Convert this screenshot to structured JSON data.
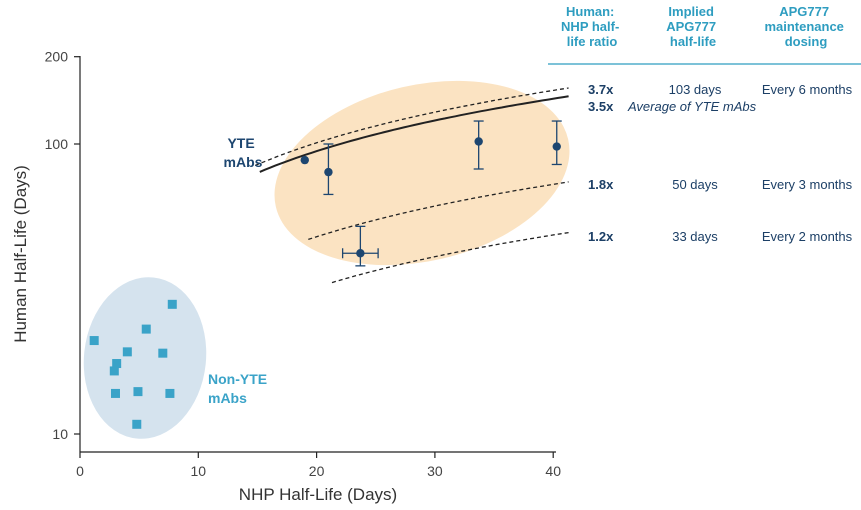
{
  "colors": {
    "axis": "#222222",
    "yte_points": "#1d4670",
    "yte_label": "#1d4670",
    "non_yte_points": "#3aa3c8",
    "non_yte_label": "#3aa3c8",
    "yte_ellipse_fill": "#fbe3c2",
    "non_yte_ellipse_fill": "#d5e3ee",
    "table_header": "#2e9dc0",
    "table_text": "#1c3f66",
    "curve": "#222222"
  },
  "chart_data": {
    "type": "scatter",
    "xlabel": "NHP Half-Life (Days)",
    "ylabel": "Human Half-Life (Days)",
    "xlim": [
      0,
      40
    ],
    "ylim": [
      9.3,
      200
    ],
    "yscale": "log",
    "x_ticks": [
      0,
      10,
      20,
      30,
      40
    ],
    "y_ticks": [
      10,
      100,
      200
    ],
    "grid": false,
    "series": [
      {
        "name": "YTE mAbs",
        "marker": "circle",
        "points": [
          {
            "x": 19,
            "y": 88
          },
          {
            "x": 21,
            "y": 80,
            "y_err": [
              67,
              100
            ]
          },
          {
            "x": 23.7,
            "y": 42,
            "y_err": [
              38,
              52
            ],
            "x_err": [
              22.2,
              25.2
            ]
          },
          {
            "x": 33.7,
            "y": 102,
            "y_err": [
              82,
              120
            ]
          },
          {
            "x": 40.3,
            "y": 98,
            "y_err": [
              85,
              120
            ]
          }
        ]
      },
      {
        "name": "Non-YTE mAbs",
        "marker": "square",
        "points": [
          {
            "x": 1.2,
            "y": 21
          },
          {
            "x": 2.9,
            "y": 16.5
          },
          {
            "x": 3.1,
            "y": 17.5
          },
          {
            "x": 3.0,
            "y": 13.8
          },
          {
            "x": 4.0,
            "y": 19.2
          },
          {
            "x": 4.9,
            "y": 14.0
          },
          {
            "x": 4.8,
            "y": 10.8
          },
          {
            "x": 5.6,
            "y": 23
          },
          {
            "x": 7.0,
            "y": 19
          },
          {
            "x": 7.6,
            "y": 13.8
          },
          {
            "x": 7.8,
            "y": 28
          }
        ]
      }
    ],
    "reference_curves": [
      {
        "ratio": "3.7x",
        "ratio_value": 3.7,
        "style": "dashed"
      },
      {
        "ratio": "3.5x",
        "ratio_value": 3.5,
        "style": "solid"
      },
      {
        "ratio": "1.8x",
        "ratio_value": 1.8,
        "style": "dashed"
      },
      {
        "ratio": "1.2x",
        "ratio_value": 1.2,
        "style": "dashed"
      }
    ],
    "group_labels": [
      {
        "series": "YTE mAbs",
        "lines": [
          "YTE",
          "mAbs"
        ]
      },
      {
        "series": "Non-YTE mAbs",
        "lines": [
          "Non-YTE",
          "mAbs"
        ]
      }
    ]
  },
  "table": {
    "headers": [
      [
        "Human:",
        "NHP half-",
        "life ratio"
      ],
      [
        "Implied",
        "APG777",
        "half-life"
      ],
      [
        "APG777",
        "maintenance",
        "dosing"
      ]
    ],
    "rows": [
      {
        "ratio": "3.7x",
        "half_life": "103 days",
        "dosing": "Every 6 months"
      },
      {
        "ratio": "3.5x",
        "note": "Average of YTE mAbs"
      },
      {
        "ratio": "1.8x",
        "half_life": "50 days",
        "dosing": "Every 3 months"
      },
      {
        "ratio": "1.2x",
        "half_life": "33 days",
        "dosing": "Every 2 months"
      }
    ]
  }
}
